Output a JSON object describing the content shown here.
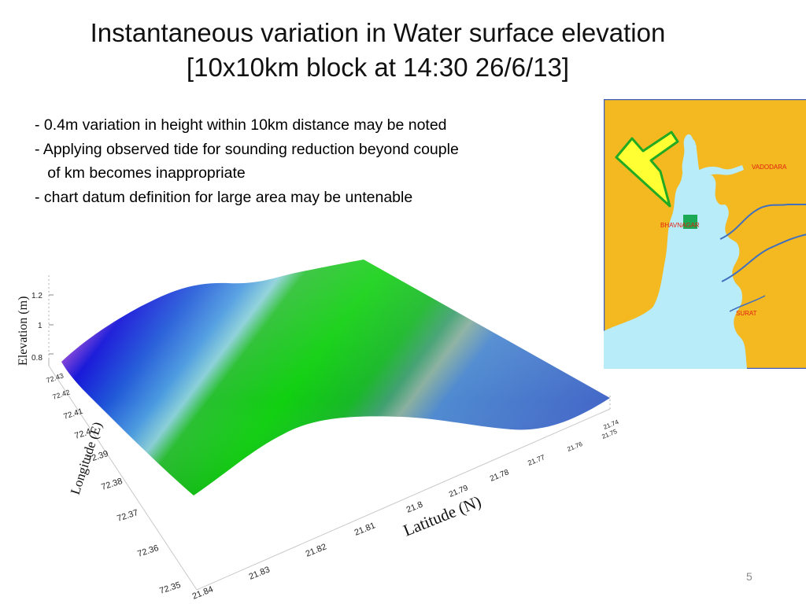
{
  "slide": {
    "title_line1": "Instantaneous variation in Water surface elevation",
    "title_line2": "[10x10km block at 14:30  26/6/13]",
    "bullets": [
      "-  0.4m variation in height  within 10km distance may be noted",
      "-  Applying observed tide for sounding reduction  beyond couple",
      "   of km becomes inappropriate",
      "-   chart datum definition for large area  may be untenable"
    ],
    "page_number": "5"
  },
  "map": {
    "labels": {
      "vadodara": "VADODARA",
      "bhavnagar": "BHAVNAGAR",
      "surat": "SURAT"
    },
    "colors": {
      "land": "#f4b820",
      "water": "#b8ecf8",
      "border": "#3f6fbf",
      "arrow_fill": "#ffff33",
      "arrow_stroke": "#22aa22",
      "marker": "#1aaa55",
      "label": "#e02010"
    }
  },
  "plot": {
    "z_axis_label": "Elevation (m)",
    "y_axis_label": "Longitude (E)",
    "x_axis_label": "Latitude (N)",
    "z_ticks": [
      "1.2",
      "1",
      "0.8"
    ],
    "longitude_ticks": [
      "72.43",
      "72.42",
      "72.41",
      "72.4",
      "72.39",
      "72.38",
      "72.37",
      "72.36",
      "72.35"
    ],
    "latitude_ticks": [
      "21.84",
      "21.83",
      "21.82",
      "21.81",
      "21.8",
      "21.79",
      "21.78",
      "21.77",
      "21.76",
      "21.75",
      "21.74"
    ],
    "colors": {
      "low": "#1010d0",
      "mid": "#12c81a",
      "high": "#4f7fd0"
    }
  }
}
